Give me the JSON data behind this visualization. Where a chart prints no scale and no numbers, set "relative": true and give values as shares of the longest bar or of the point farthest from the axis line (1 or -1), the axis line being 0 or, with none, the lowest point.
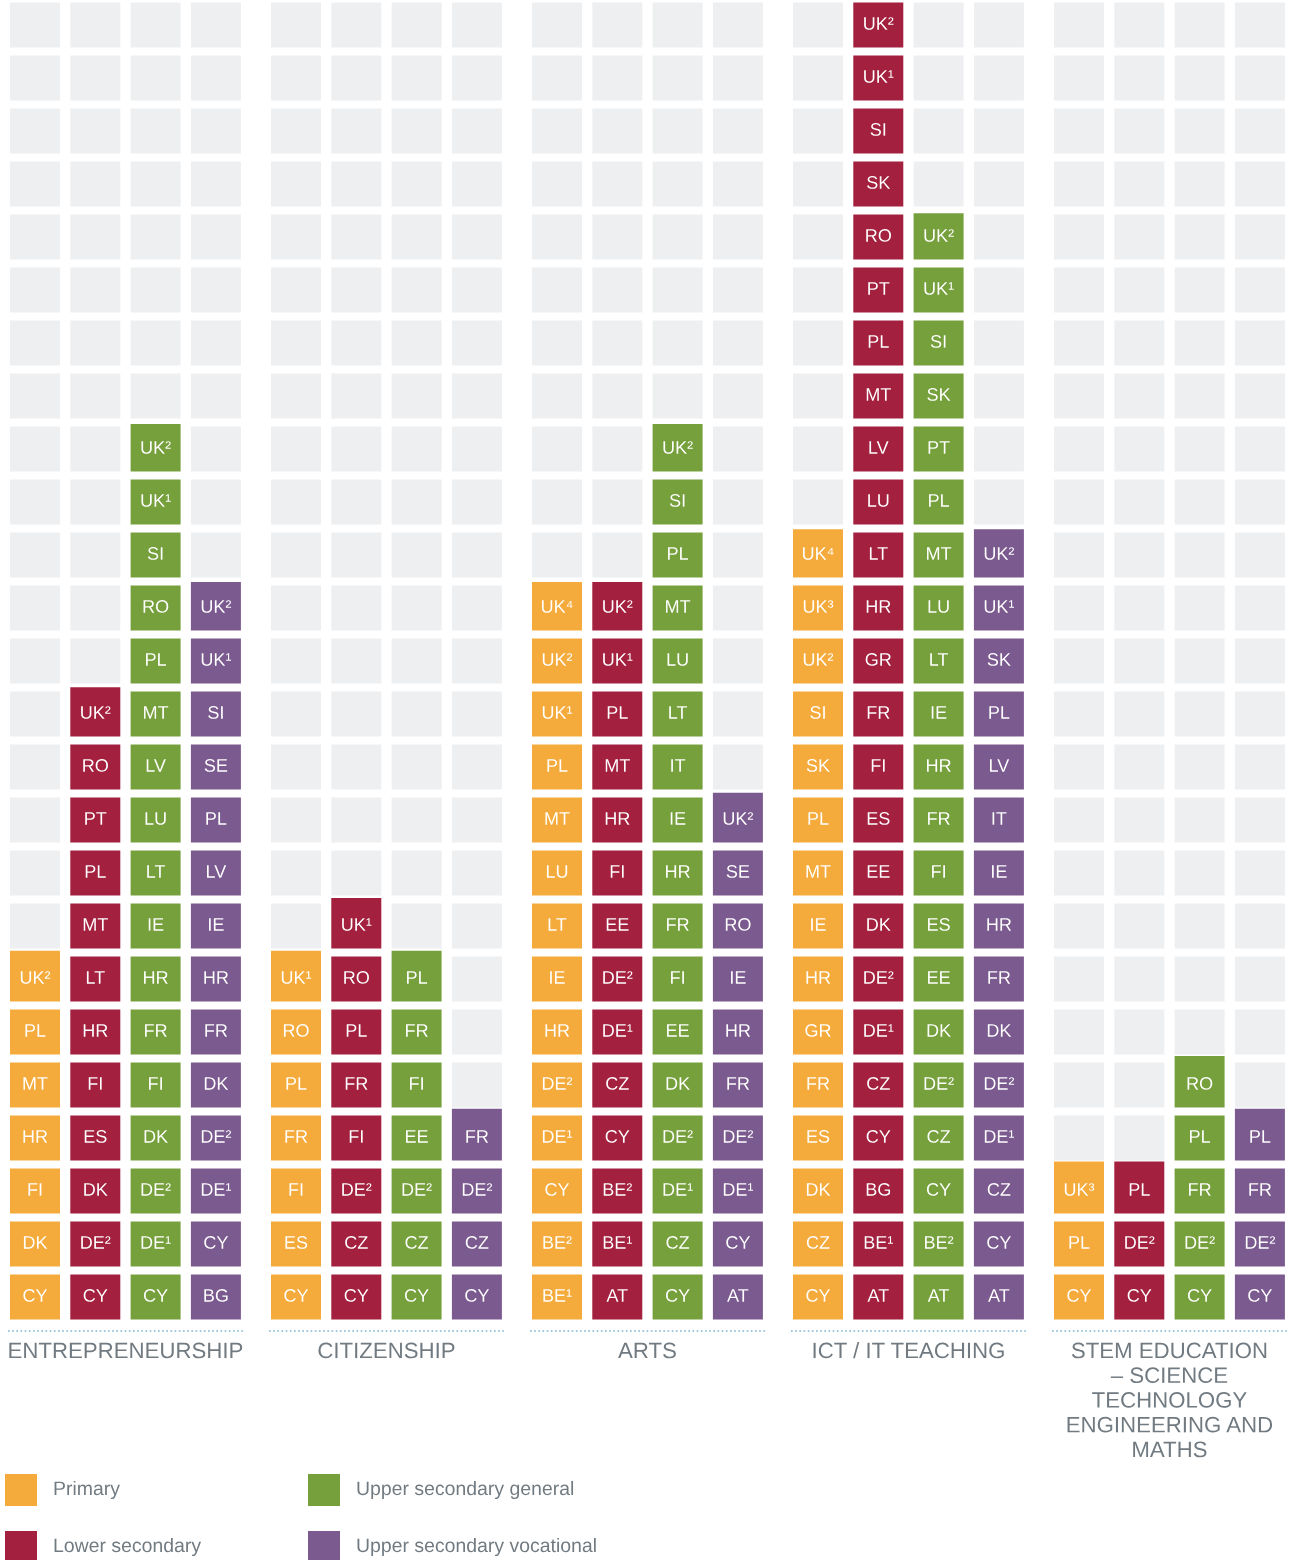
{
  "chart_data": {
    "type": "bar",
    "relative": true,
    "categories": [
      "ENTREPRENEURSHIP",
      "CITIZENSHIP",
      "ARTS",
      "ICT / IT TEACHING",
      "STEM EDUCATION\n– SCIENCE\nTECHNOLOGY\nENGINEERING AND\nMATHS"
    ],
    "series": [
      {
        "name": "Primary",
        "color": "#f5ab3c",
        "values": [
          0.28,
          0.28,
          0.56,
          0.6,
          0.12
        ],
        "value_labels": [
          [
            "CY",
            "DK",
            "FI",
            "HR",
            "MT",
            "PL",
            "UK²"
          ],
          [
            "CY",
            "ES",
            "FI",
            "FR",
            "PL",
            "RO",
            "UK¹"
          ],
          [
            "BE¹",
            "BE²",
            "CY",
            "DE¹",
            "DE²",
            "HR",
            "IE",
            "LT",
            "LU",
            "MT",
            "PL",
            "UK¹",
            "UK²",
            "UK⁴"
          ],
          [
            "CY",
            "CZ",
            "DK",
            "ES",
            "FR",
            "GR",
            "HR",
            "IE",
            "MT",
            "PL",
            "SK",
            "SI",
            "UK²",
            "UK³",
            "UK⁴"
          ],
          [
            "CY",
            "PL",
            "UK³"
          ]
        ]
      },
      {
        "name": "Lower secondary",
        "color": "#a3203f",
        "values": [
          0.48,
          0.32,
          0.56,
          1,
          0.12
        ],
        "value_labels": [
          [
            "CY",
            "DE²",
            "DK",
            "ES",
            "FI",
            "HR",
            "LT",
            "MT",
            "PL",
            "PT",
            "RO",
            "UK²"
          ],
          [
            "CY",
            "CZ",
            "DE²",
            "FI",
            "FR",
            "PL",
            "RO",
            "UK¹"
          ],
          [
            "AT",
            "BE¹",
            "BE²",
            "CY",
            "CZ",
            "DE¹",
            "DE²",
            "EE",
            "FI",
            "HR",
            "MT",
            "PL",
            "UK¹",
            "UK²"
          ],
          [
            "AT",
            "BE¹",
            "BG",
            "CY",
            "CZ",
            "DE¹",
            "DE²",
            "DK",
            "EE",
            "ES",
            "FI",
            "FR",
            "GR",
            "HR",
            "LT",
            "LU",
            "LV",
            "MT",
            "PL",
            "PT",
            "RO",
            "SK",
            "SI",
            "UK¹",
            "UK²"
          ],
          [
            "CY",
            "DE²",
            "PL"
          ]
        ]
      },
      {
        "name": "Upper secondary general",
        "color": "#76a03c",
        "values": [
          0.68,
          0.28,
          0.68,
          0.84,
          0.2
        ],
        "value_labels": [
          [
            "CY",
            "DE¹",
            "DE²",
            "DK",
            "FI",
            "FR",
            "HR",
            "IE",
            "LT",
            "LU",
            "LV",
            "MT",
            "PL",
            "RO",
            "SI",
            "UK¹",
            "UK²"
          ],
          [
            "CY",
            "CZ",
            "DE²",
            "EE",
            "FI",
            "FR",
            "PL"
          ],
          [
            "CY",
            "CZ",
            "DE¹",
            "DE²",
            "DK",
            "EE",
            "FI",
            "FR",
            "HR",
            "IE",
            "IT",
            "LT",
            "LU",
            "MT",
            "PL",
            "SI",
            "UK²"
          ],
          [
            "AT",
            "BE²",
            "CY",
            "CZ",
            "DE²",
            "DK",
            "EE",
            "ES",
            "FI",
            "FR",
            "HR",
            "IE",
            "LT",
            "LU",
            "MT",
            "PL",
            "PT",
            "SK",
            "SI",
            "UK¹",
            "UK²"
          ],
          [
            "CY",
            "DE²",
            "FR",
            "PL",
            "RO"
          ]
        ]
      },
      {
        "name": "Upper secondary vocational",
        "color": "#7b5a8f",
        "values": [
          0.56,
          0.16,
          0.4,
          0.6,
          0.16
        ],
        "value_labels": [
          [
            "BG",
            "CY",
            "DE¹",
            "DE²",
            "DK",
            "FR",
            "HR",
            "IE",
            "LV",
            "PL",
            "SE",
            "SI",
            "UK¹",
            "UK²"
          ],
          [
            "CY",
            "CZ",
            "DE²",
            "FR"
          ],
          [
            "AT",
            "CY",
            "DE¹",
            "DE²",
            "FR",
            "HR",
            "IE",
            "RO",
            "SE",
            "UK²"
          ],
          [
            "AT",
            "CY",
            "CZ",
            "DE¹",
            "DE²",
            "DK",
            "FR",
            "HR",
            "IE",
            "IT",
            "LV",
            "PL",
            "SK",
            "UK¹",
            "UK²"
          ],
          [
            "CY",
            "DE²",
            "FR",
            "PL"
          ]
        ]
      }
    ],
    "legend": "bottom left"
  }
}
